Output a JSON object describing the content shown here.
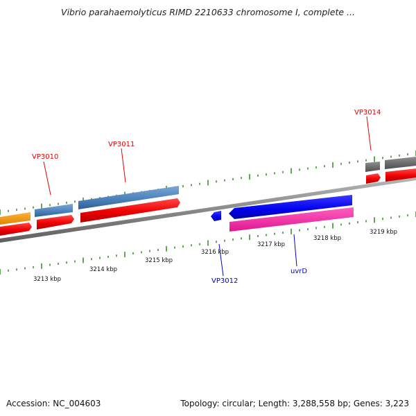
{
  "title": "Vibrio parahaemolyticus RIMD 2210633 chromosome I, complete ...",
  "footer": {
    "accession": "Accession: NC_004603",
    "summary": "Topology: circular; Length: 3,288,558 bp; Genes: 3,223"
  },
  "ticks": [
    "3213 kbp",
    "3214 kbp",
    "3215 kbp",
    "3216 kbp",
    "3217 kbp",
    "3218 kbp",
    "3219 kbp"
  ],
  "gene_labels": {
    "top": [
      "VP3010",
      "VP3011",
      "VP3014"
    ],
    "bottom": [
      "VP3012",
      "uvrD"
    ]
  },
  "colors": {
    "forward_label": "#dd0000",
    "reverse_label": "#0000cc",
    "tick": "#2a8a1a",
    "backbone": "#8a8a8a"
  }
}
